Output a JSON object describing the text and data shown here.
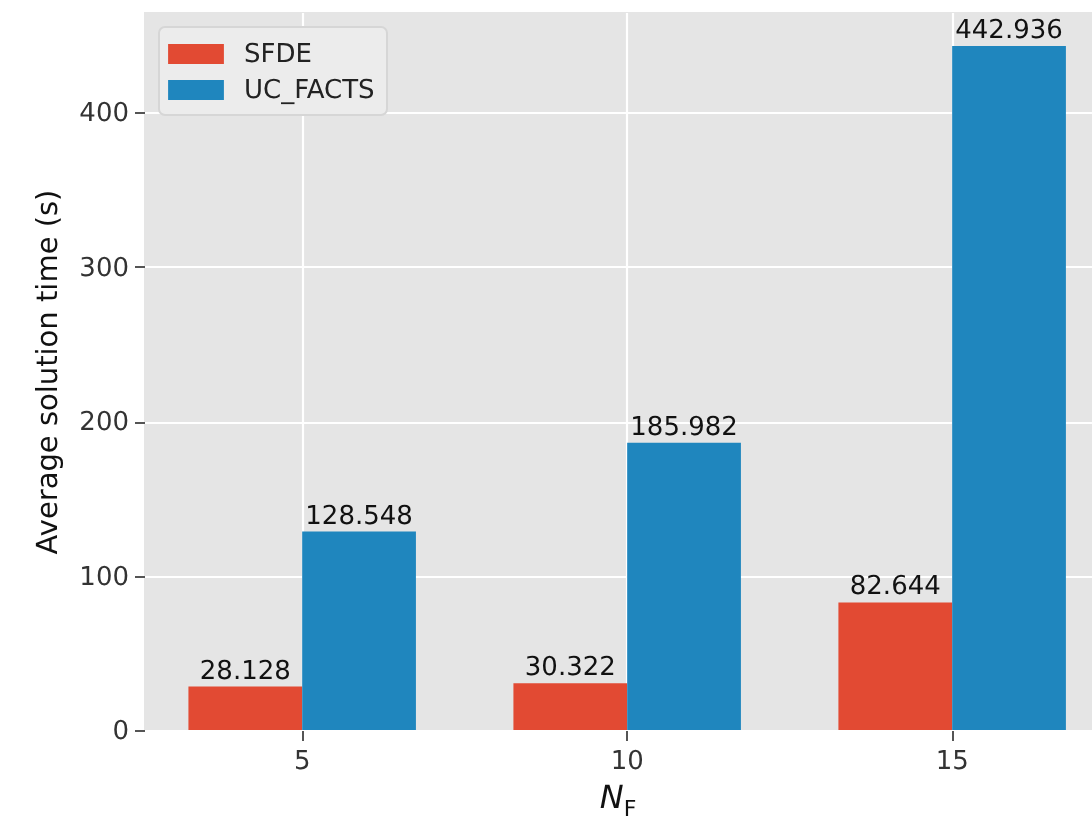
{
  "chart_data": {
    "type": "bar",
    "xlabel": "N$_{F}$",
    "ylabel": "Average solution time (s)",
    "categories": [
      "5",
      "10",
      "15"
    ],
    "series": [
      {
        "name": "SFDE",
        "color": "#e24a33",
        "values": [
          28.128,
          30.322,
          82.644
        ]
      },
      {
        "name": "UC_FACTS",
        "color": "#1f86be",
        "values": [
          128.548,
          185.982,
          442.936
        ]
      }
    ],
    "ylim": [
      0,
      465
    ],
    "yticks": [
      0,
      100,
      200,
      300,
      400
    ],
    "grid": true,
    "legend": "top left",
    "data_labels": true
  }
}
